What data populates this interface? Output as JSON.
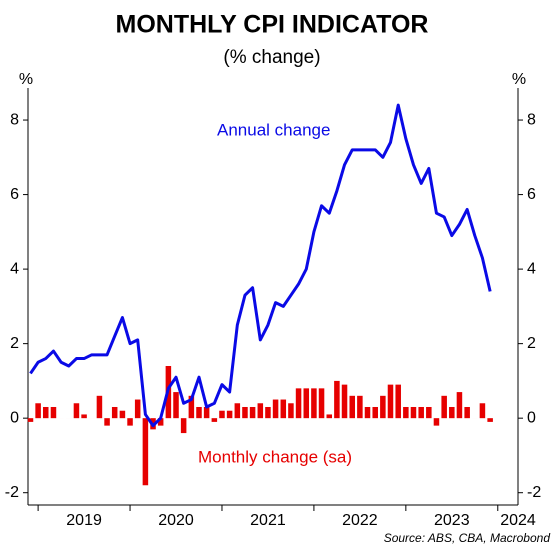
{
  "chart_data": {
    "type": "bar_line",
    "title": "MONTHLY CPI INDICATOR",
    "subtitle": "(% change)",
    "y_unit": "%",
    "source": "Source: ABS, CBA, Macrobond",
    "x": [
      2018.917,
      2019,
      2019.083,
      2019.167,
      2019.25,
      2019.333,
      2019.417,
      2019.5,
      2019.583,
      2019.667,
      2019.75,
      2019.833,
      2019.917,
      2020,
      2020.083,
      2020.167,
      2020.25,
      2020.333,
      2020.417,
      2020.5,
      2020.583,
      2020.667,
      2020.75,
      2020.833,
      2020.917,
      2021,
      2021.083,
      2021.167,
      2021.25,
      2021.333,
      2021.417,
      2021.5,
      2021.583,
      2021.667,
      2021.75,
      2021.833,
      2021.917,
      2022,
      2022.083,
      2022.167,
      2022.25,
      2022.333,
      2022.417,
      2022.5,
      2022.583,
      2022.667,
      2022.75,
      2022.833,
      2022.917,
      2023,
      2023.083,
      2023.167,
      2023.25,
      2023.333,
      2023.417,
      2023.5,
      2023.583,
      2023.667,
      2023.75,
      2023.833,
      2023.917
    ],
    "series": [
      {
        "name": "Monthly change (sa)",
        "kind": "bar",
        "color": "#e60000",
        "values": [
          -0.1,
          0.4,
          0.3,
          0.3,
          0.0,
          0.0,
          0.4,
          0.1,
          0.0,
          0.6,
          -0.2,
          0.3,
          0.2,
          -0.2,
          0.5,
          -1.8,
          -0.3,
          -0.2,
          1.4,
          0.7,
          -0.4,
          0.6,
          0.3,
          0.3,
          -0.1,
          0.2,
          0.2,
          0.4,
          0.3,
          0.3,
          0.4,
          0.3,
          0.5,
          0.5,
          0.4,
          0.8,
          0.8,
          0.8,
          0.8,
          0.1,
          1.0,
          0.9,
          0.6,
          0.6,
          0.3,
          0.3,
          0.6,
          0.9,
          0.9,
          0.3,
          0.3,
          0.3,
          0.3,
          -0.2,
          0.6,
          0.3,
          0.7,
          0.3,
          0.0,
          0.4,
          -0.1
        ]
      },
      {
        "name": "Annual change",
        "kind": "line",
        "color": "#0a0ae6",
        "values": [
          1.2,
          1.5,
          1.6,
          1.8,
          1.5,
          1.4,
          1.6,
          1.6,
          1.7,
          1.7,
          1.7,
          2.2,
          2.7,
          2.0,
          2.1,
          0.1,
          -0.2,
          0.0,
          0.8,
          1.1,
          0.4,
          0.5,
          1.1,
          0.3,
          0.4,
          0.9,
          0.7,
          2.5,
          3.3,
          3.5,
          2.1,
          2.5,
          3.1,
          3.0,
          3.3,
          3.6,
          4.0,
          5.0,
          5.7,
          5.5,
          6.1,
          6.8,
          7.2,
          7.2,
          7.2,
          7.2,
          7.0,
          7.4,
          8.4,
          7.5,
          6.8,
          6.3,
          6.7,
          5.5,
          5.4,
          4.9,
          5.2,
          5.6,
          4.9,
          4.3,
          3.4
        ]
      }
    ],
    "xlim": [
      2018.89,
      2024.22
    ],
    "xticks": [
      2019,
      2020,
      2021,
      2022,
      2023,
      2024
    ],
    "ylim": [
      -2.33,
      8.86
    ],
    "yticks": [
      -2,
      0,
      2,
      4,
      6,
      8
    ]
  }
}
